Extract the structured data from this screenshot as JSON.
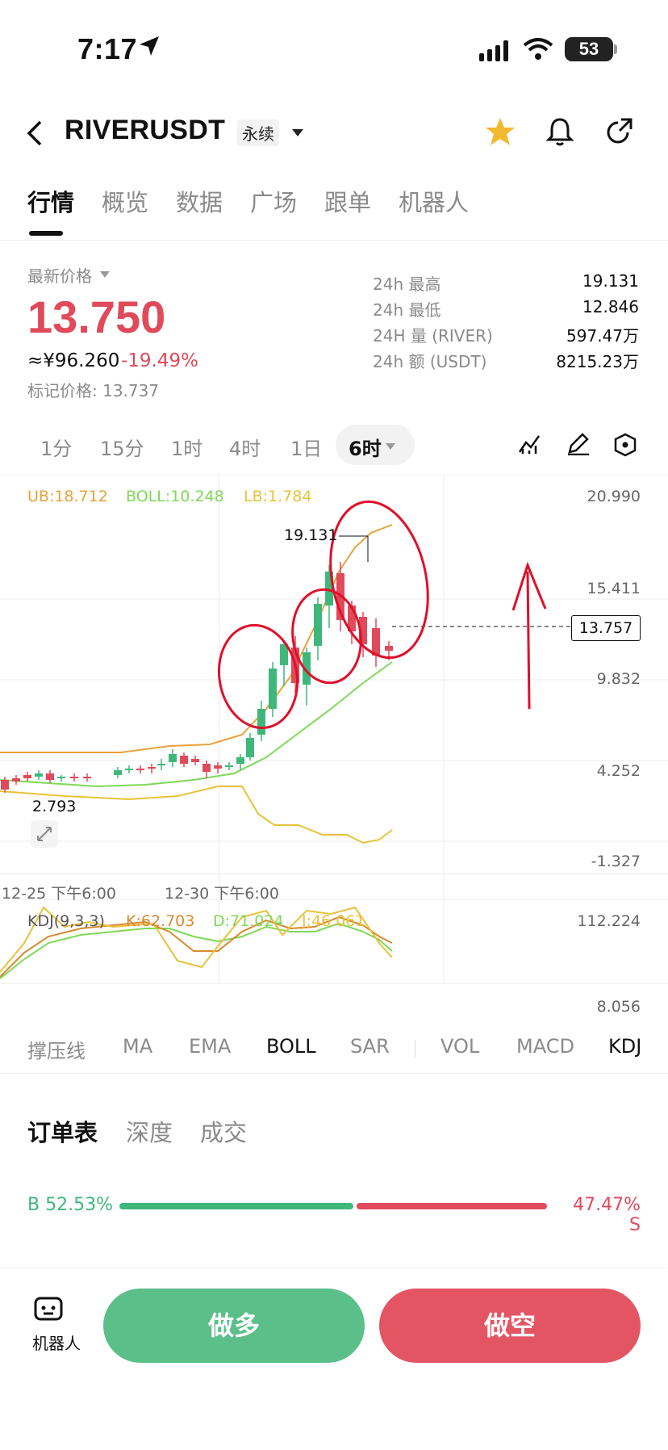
{
  "status_bar": {
    "time": "7:17",
    "battery": "53"
  },
  "header": {
    "symbol": "RIVERUSDT",
    "contract_type": "永续"
  },
  "tabs": [
    {
      "label": "行情",
      "active": true
    },
    {
      "label": "概览"
    },
    {
      "label": "数据"
    },
    {
      "label": "广场"
    },
    {
      "label": "跟单"
    },
    {
      "label": "机器人"
    }
  ],
  "ticker": {
    "latest_price_label": "最新价格",
    "price": "13.750",
    "cny": "≈¥96.260",
    "change": "-19.49%",
    "mark_price": "标记价格: 13.737",
    "stats": [
      {
        "key": "24h  最高",
        "value": "19.131"
      },
      {
        "key": "24h  最低",
        "value": "12.846"
      },
      {
        "key": "24H  量 (RIVER)",
        "value": "597.47万"
      },
      {
        "key": "24h  额 (USDT)",
        "value": "8215.23万"
      }
    ]
  },
  "intervals": [
    "1分",
    "15分",
    "1时",
    "4时",
    "1日"
  ],
  "active_interval": "6时",
  "chart": {
    "legend": {
      "ub": "UB:18.712",
      "boll": "BOLL:10.248",
      "lb": "LB:1.784"
    },
    "y_axis": [
      "20.990",
      "15.411",
      "9.832",
      "4.252",
      "-1.327"
    ],
    "high_marker": "19.131",
    "low_marker": "2.793",
    "current_price_tag": "13.757",
    "time_labels": [
      "12-25 下午6:00",
      "12-30 下午6:00"
    ],
    "kdj_legend": {
      "name": "KDJ(9,3,3)",
      "k": "K:62.703",
      "d": "D:71.024",
      "j": "J:46.061"
    },
    "kdj_axis": [
      "112.224",
      "8.056"
    ],
    "colors": {
      "up": "#3fb77b",
      "down": "#e04a5b",
      "ub": "#e8a23a",
      "boll": "#7ed957",
      "lb": "#e8c23a",
      "annotation": "#e0102a"
    }
  },
  "indicator_tabs": [
    {
      "label": "撑压线"
    },
    {
      "label": "MA"
    },
    {
      "label": "EMA"
    },
    {
      "label": "BOLL",
      "active": true
    },
    {
      "label": "SAR"
    },
    {
      "label": "VOL"
    },
    {
      "label": "MACD"
    },
    {
      "label": "KDJ",
      "active": true
    }
  ],
  "orderbook": {
    "tabs": [
      "订单表",
      "深度",
      "成交"
    ],
    "buy_ratio": "B 52.53%",
    "sell_ratio": "47.47% S"
  },
  "bottom": {
    "robot_label": "机器人",
    "long_label": "做多",
    "short_label": "做空"
  }
}
